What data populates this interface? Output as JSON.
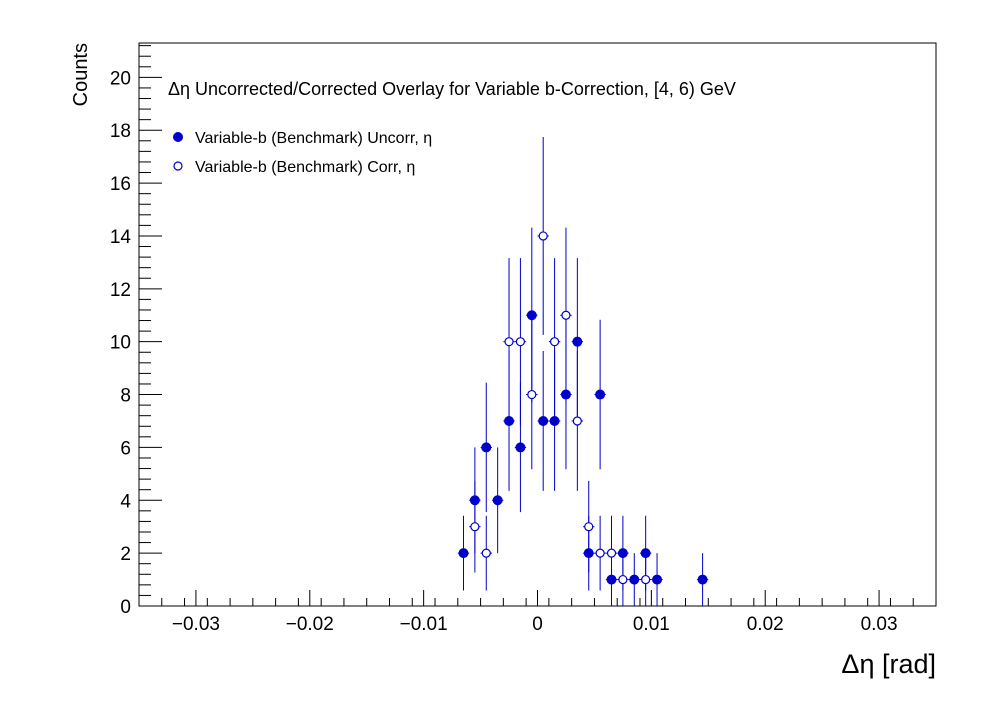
{
  "chart_data": {
    "type": "scatter",
    "title": "Δη Uncorrected/Corrected Overlay for Variable b-Correction, [4, 6) GeV",
    "xlabel": "Δη  [rad]",
    "ylabel": "Counts",
    "xlim": [
      -0.035,
      0.035
    ],
    "ylim": [
      0,
      21.3
    ],
    "x_ticks": [
      -0.03,
      -0.02,
      -0.01,
      0,
      0.01,
      0.02,
      0.03
    ],
    "x_tick_labels": [
      "−0.03",
      "−0.02",
      "−0.01",
      "0",
      "0.01",
      "0.02",
      "0.03"
    ],
    "y_ticks": [
      0,
      2,
      4,
      6,
      8,
      10,
      12,
      14,
      16,
      18,
      20
    ],
    "y_tick_labels": [
      "0",
      "2",
      "4",
      "6",
      "8",
      "10",
      "12",
      "14",
      "16",
      "18",
      "20"
    ],
    "bin_width": 0.001,
    "grid": false,
    "legend_position": "top-left",
    "colors": {
      "series": "#0000cc",
      "axes": "#000000",
      "background": "#ffffff"
    },
    "series": [
      {
        "name": "Variable-b (Benchmark) Uncorr, η",
        "marker": "filled-circle",
        "x": [
          -0.0065,
          -0.0055,
          -0.0045,
          -0.0035,
          -0.0025,
          -0.0015,
          -0.0005,
          0.0005,
          0.0015,
          0.0025,
          0.0035,
          0.0045,
          0.0055,
          0.0065,
          0.0075,
          0.0085,
          0.0095,
          0.0105,
          0.0145
        ],
        "y": [
          2,
          4,
          6,
          4,
          7,
          6,
          11,
          7,
          7,
          8,
          10,
          2,
          8,
          1,
          2,
          1,
          2,
          1,
          1
        ]
      },
      {
        "name": "Variable-b (Benchmark) Corr, η",
        "marker": "open-circle",
        "x": [
          -0.0055,
          -0.0045,
          -0.0025,
          -0.0015,
          -0.0005,
          0.0005,
          0.0015,
          0.0025,
          0.0035,
          0.0045,
          0.0055,
          0.0065,
          0.0075,
          0.0095
        ],
        "y": [
          3,
          2,
          10,
          10,
          8,
          14,
          10,
          11,
          7,
          3,
          2,
          2,
          1,
          1
        ]
      }
    ]
  }
}
